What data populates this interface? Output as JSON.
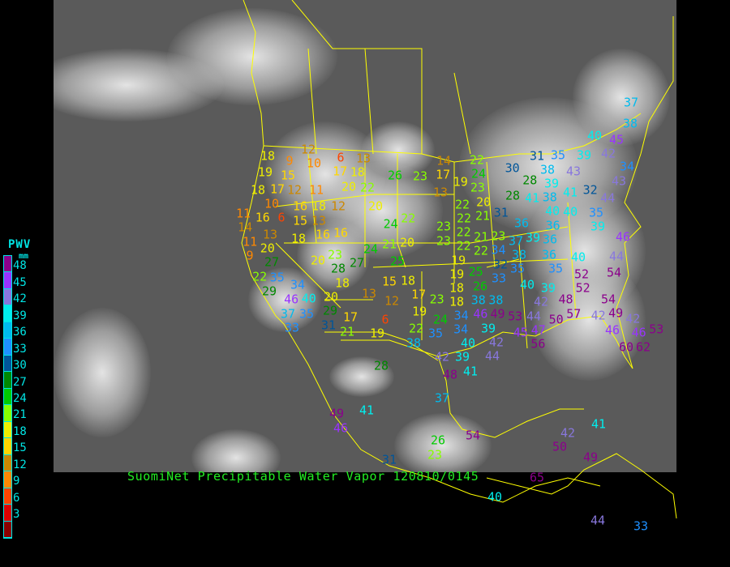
{
  "title": "SuomiNet Precipitable Water Vapor 120810/0145",
  "legend": {
    "title": "PWV",
    "unit": "mm",
    "ticks": [
      "48",
      "45",
      "42",
      "39",
      "36",
      "33",
      "30",
      "27",
      "24",
      "21",
      "18",
      "15",
      "12",
      "9",
      "6",
      "3"
    ],
    "colors": [
      "#8b008b",
      "#9933ff",
      "#8877dd",
      "#00eeee",
      "#00bbee",
      "#1e90ff",
      "#005599",
      "#008800",
      "#00cc00",
      "#88ff00",
      "#eeee00",
      "#ffd700",
      "#cc8800",
      "#ff8800",
      "#ff4400",
      "#dd0000",
      "#8b0000"
    ]
  },
  "stations": [
    18,
    9,
    12,
    10,
    6,
    13,
    19,
    15,
    17,
    18,
    26,
    23,
    14,
    17,
    18,
    17,
    12,
    11,
    20,
    22,
    13,
    10,
    16,
    18,
    12,
    20,
    11,
    16,
    6,
    15,
    13,
    22,
    14,
    16,
    16,
    24,
    11,
    13,
    18,
    23,
    22,
    9,
    20,
    21,
    20,
    22,
    27,
    20,
    23,
    24,
    27,
    25,
    22,
    28,
    18,
    19,
    35,
    34,
    29,
    15,
    18,
    20,
    40,
    46,
    13,
    12,
    17,
    23,
    18,
    29,
    37,
    35,
    19,
    17,
    6,
    33,
    31,
    21,
    19,
    22,
    35,
    24,
    34,
    37,
    38,
    40,
    45,
    35,
    39,
    42,
    30,
    31,
    43,
    34,
    22,
    28,
    38,
    43,
    19,
    24,
    32,
    23,
    39,
    28,
    41,
    38,
    41,
    40,
    44,
    20,
    21,
    31,
    40,
    35,
    39,
    36,
    36,
    46,
    23,
    22,
    21,
    23,
    37,
    39,
    36,
    22,
    22,
    34,
    38,
    36,
    40,
    44,
    32,
    35,
    35,
    54,
    19,
    25,
    26,
    33,
    52,
    52,
    40,
    39,
    18,
    38,
    38,
    42,
    48,
    54,
    49,
    34,
    46,
    49,
    53,
    57,
    42,
    44,
    50,
    40,
    39,
    45,
    47,
    42,
    46,
    46,
    53,
    39,
    42,
    56,
    60,
    62,
    44,
    42,
    41,
    38,
    48,
    37,
    28,
    49,
    46,
    41,
    54,
    26,
    23,
    42,
    41,
    50,
    49,
    40,
    65,
    44,
    33,
    31
  ]
}
